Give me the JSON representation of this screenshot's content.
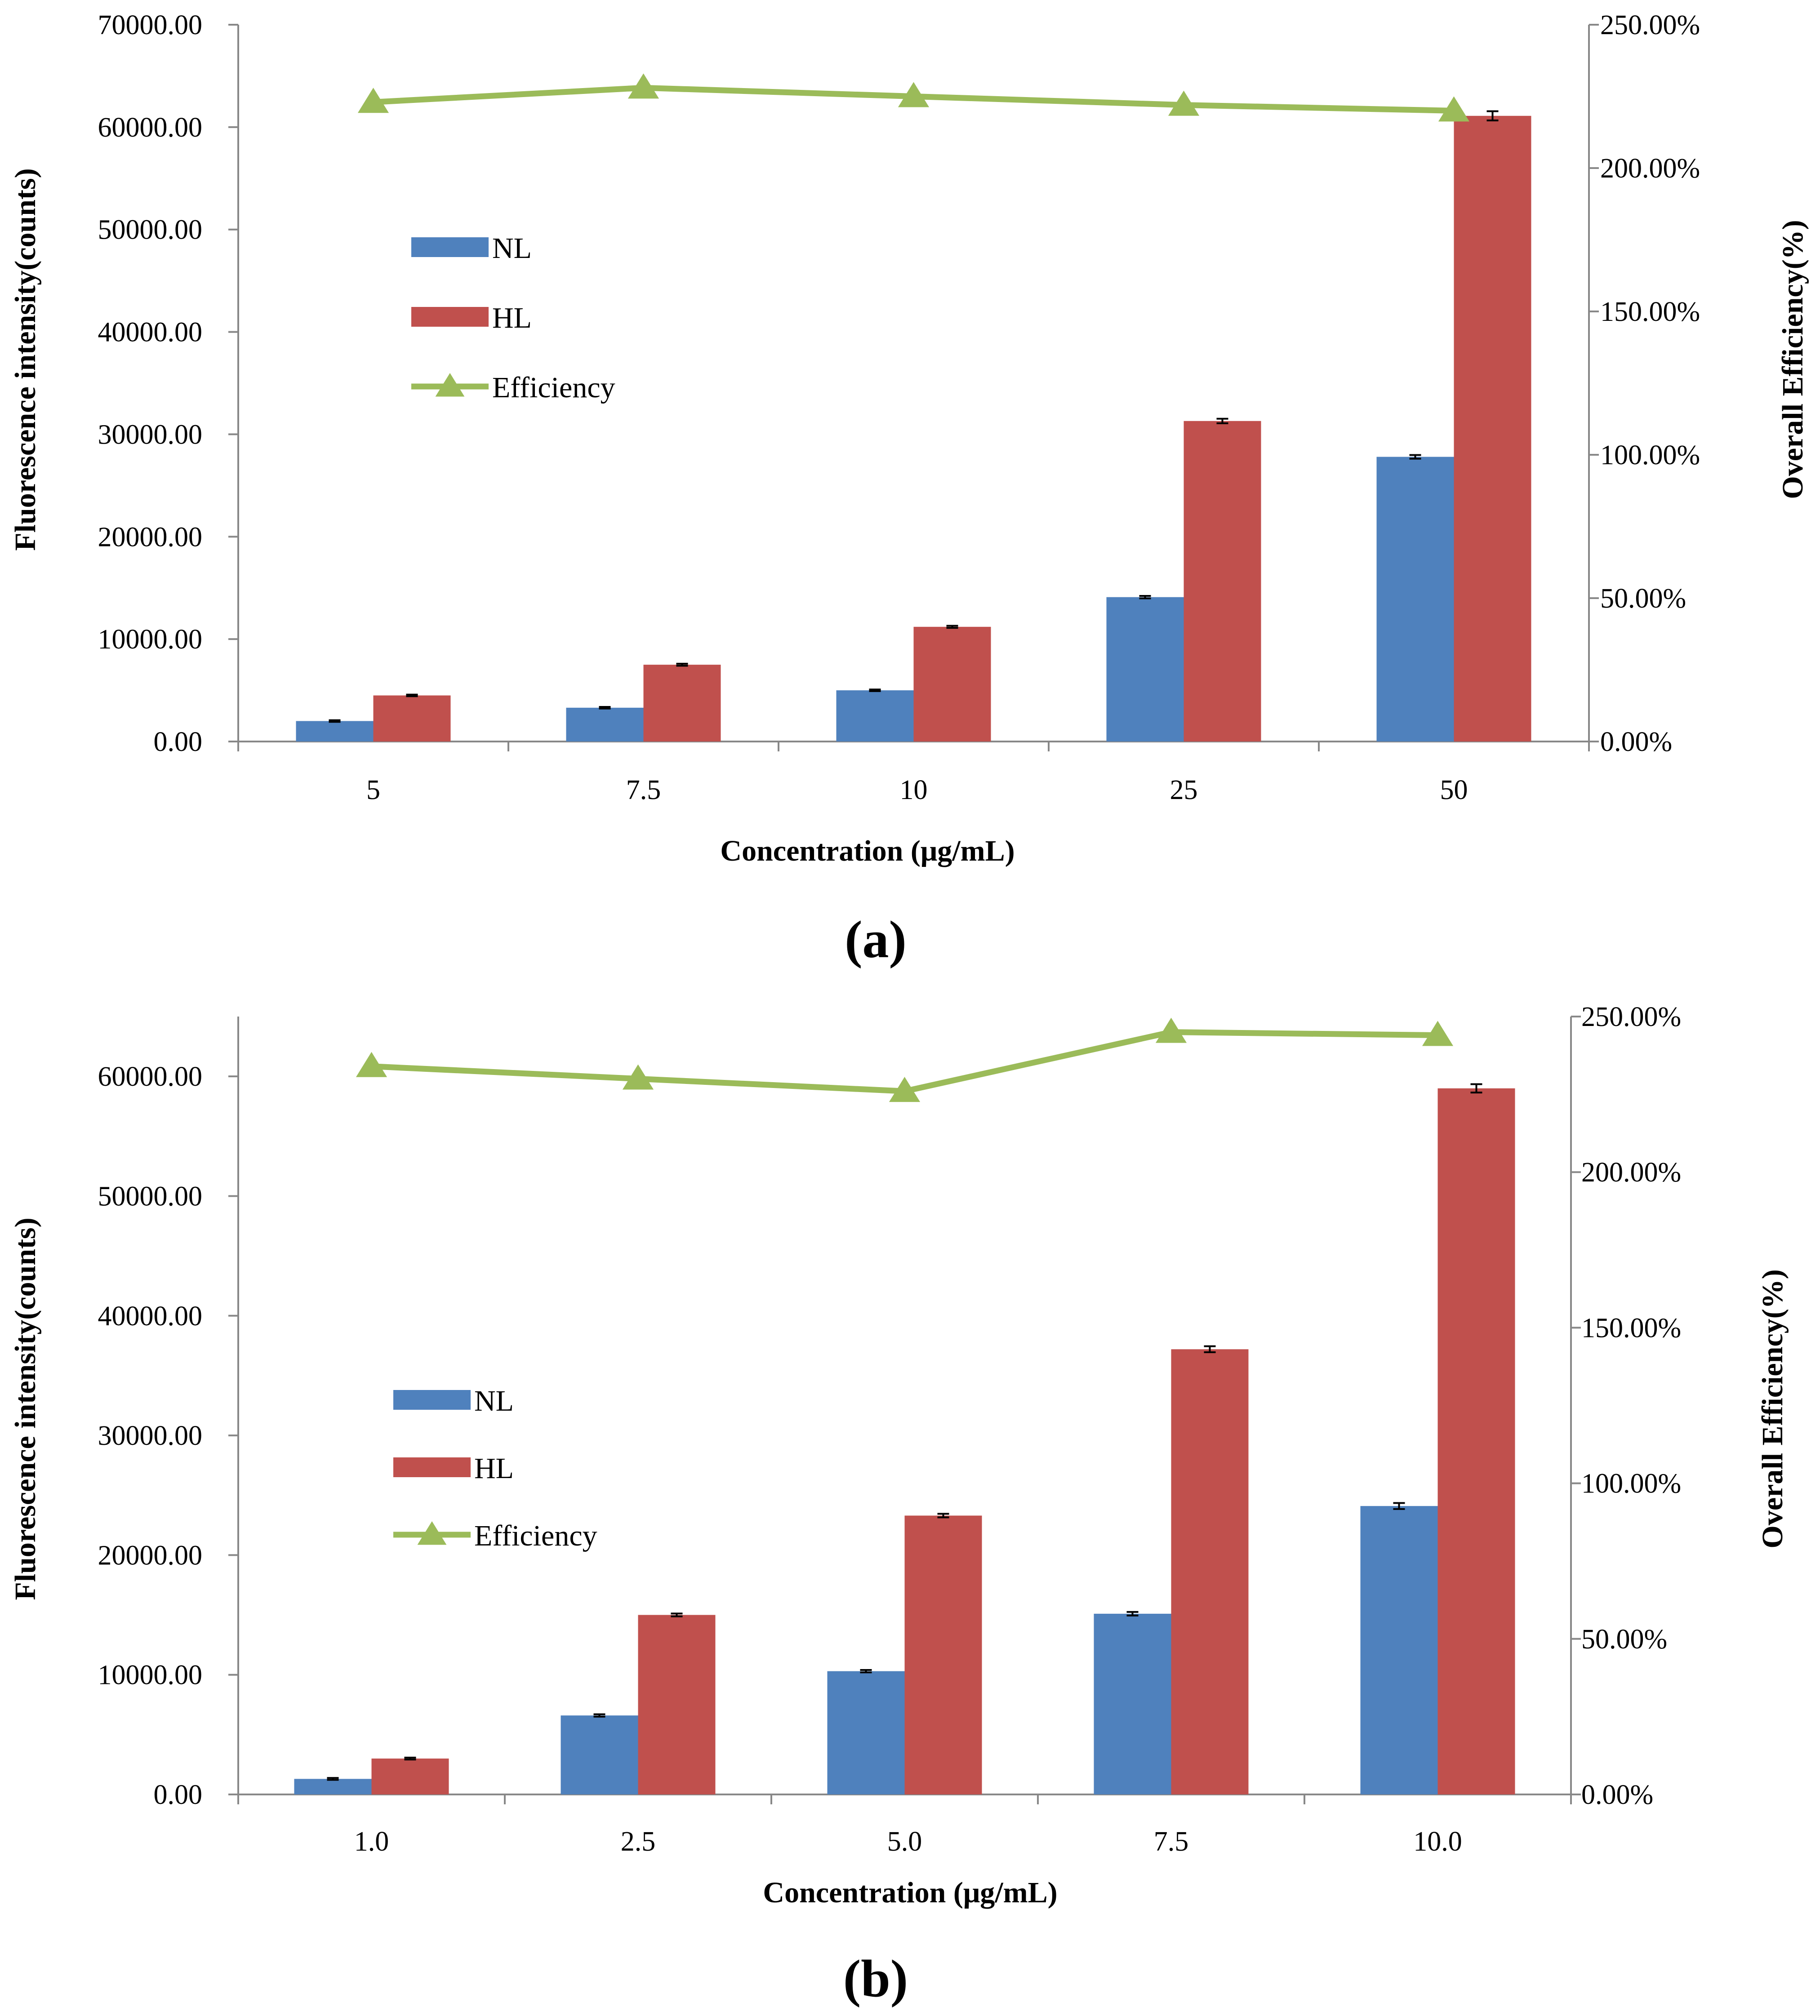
{
  "chart_data": [
    {
      "type": "bar",
      "panel_label": "(a)",
      "categories": [
        "5",
        "7.5",
        "10",
        "25",
        "50"
      ],
      "xlabel": "Concentration (μg/mL)",
      "ylabel": "Fluorescence intensity(counts)",
      "y2label": "Overall Efficiency(%)",
      "ylim": [
        0,
        70000
      ],
      "y2lim": [
        0,
        2.5
      ],
      "yticks": [
        "0.00",
        "10000.00",
        "20000.00",
        "30000.00",
        "40000.00",
        "50000.00",
        "60000.00",
        "70000.00"
      ],
      "y2ticks": [
        "0.00%",
        "50.00%",
        "100.00%",
        "150.00%",
        "200.00%",
        "250.00%"
      ],
      "grid": false,
      "legend_position": "upper-left",
      "series": [
        {
          "name": "NL",
          "kind": "bar",
          "axis": "left",
          "color": "#4f81bd",
          "values": [
            2000,
            3300,
            5000,
            14100,
            27800
          ],
          "errors": [
            80,
            80,
            80,
            120,
            180
          ]
        },
        {
          "name": "HL",
          "kind": "bar",
          "axis": "left",
          "color": "#c0504d",
          "values": [
            4500,
            7500,
            11200,
            31300,
            61100
          ],
          "errors": [
            80,
            100,
            100,
            220,
            450
          ]
        },
        {
          "name": "Efficiency",
          "kind": "line",
          "axis": "right",
          "color": "#9bbb59",
          "marker": "triangle",
          "values": [
            2.23,
            2.28,
            2.25,
            2.22,
            2.2
          ]
        }
      ]
    },
    {
      "type": "bar",
      "panel_label": "(b)",
      "categories": [
        "1.0",
        "2.5",
        "5.0",
        "7.5",
        "10.0"
      ],
      "xlabel": "Concentration (μg/mL)",
      "ylabel": "Fluorescence intensity(counts)",
      "y2label": "Overall Efficiency(%)",
      "ylim": [
        0,
        65000
      ],
      "y2lim": [
        0,
        2.5
      ],
      "yticks": [
        "0.00",
        "10000.00",
        "20000.00",
        "30000.00",
        "40000.00",
        "50000.00",
        "60000.00"
      ],
      "y2ticks": [
        "0.00%",
        "50.00%",
        "100.00%",
        "150.00%",
        "200.00%",
        "250.00%"
      ],
      "grid": false,
      "legend_position": "center-left",
      "series": [
        {
          "name": "NL",
          "kind": "bar",
          "axis": "left",
          "color": "#4f81bd",
          "values": [
            1300,
            6600,
            10300,
            15100,
            24100
          ],
          "errors": [
            80,
            100,
            100,
            150,
            250
          ]
        },
        {
          "name": "HL",
          "kind": "bar",
          "axis": "left",
          "color": "#c0504d",
          "values": [
            3000,
            15000,
            23300,
            37200,
            59000
          ],
          "errors": [
            80,
            120,
            150,
            250,
            350
          ]
        },
        {
          "name": "Efficiency",
          "kind": "line",
          "axis": "right",
          "color": "#9bbb59",
          "marker": "triangle",
          "values": [
            2.34,
            2.3,
            2.26,
            2.45,
            2.44
          ]
        }
      ]
    }
  ]
}
